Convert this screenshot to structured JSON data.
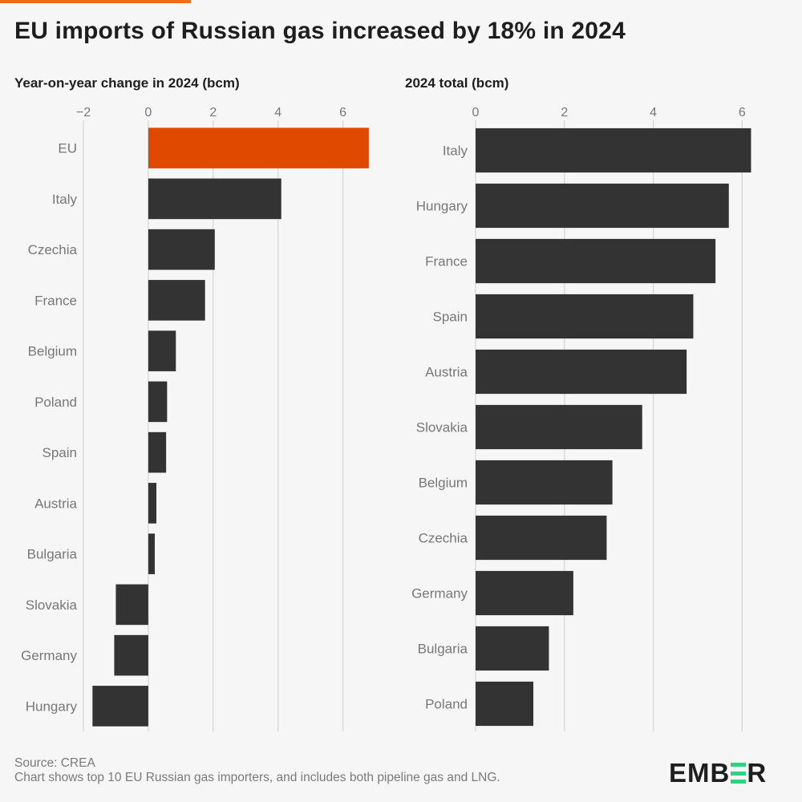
{
  "title": "EU imports of Russian gas increased by 18% in 2024",
  "colors": {
    "accent_bar": "#f26a1b",
    "highlight": "#e04a00",
    "bar": "#333333",
    "grid": "#d4d4d4",
    "label": "#777777",
    "logo_green": "#2bd47d"
  },
  "chart_data": [
    {
      "type": "bar",
      "orientation": "horizontal",
      "title": "Year-on-year change in 2024 (bcm)",
      "categories": [
        "EU",
        "Italy",
        "Czechia",
        "France",
        "Belgium",
        "Poland",
        "Spain",
        "Austria",
        "Bulgaria",
        "Slovakia",
        "Germany",
        "Hungary"
      ],
      "values": [
        6.8,
        4.1,
        2.05,
        1.75,
        0.85,
        0.58,
        0.55,
        0.25,
        0.2,
        -1.0,
        -1.05,
        -1.72
      ],
      "highlight": [
        "EU"
      ],
      "xlim": [
        -2,
        7
      ],
      "xticks": [
        -2,
        0,
        2,
        4,
        6
      ],
      "xtick_labels": [
        "−2",
        "0",
        "2",
        "4",
        "6"
      ],
      "grid": true
    },
    {
      "type": "bar",
      "orientation": "horizontal",
      "title": "2024 total (bcm)",
      "categories": [
        "Italy",
        "Hungary",
        "France",
        "Spain",
        "Austria",
        "Slovakia",
        "Belgium",
        "Czechia",
        "Germany",
        "Bulgaria",
        "Poland"
      ],
      "values": [
        6.2,
        5.7,
        5.4,
        4.9,
        4.75,
        3.75,
        3.08,
        2.95,
        2.2,
        1.65,
        1.3
      ],
      "xlim": [
        0,
        6.3
      ],
      "xticks": [
        0,
        2,
        4,
        6
      ],
      "xtick_labels": [
        "0",
        "2",
        "4",
        "6"
      ],
      "grid": true
    }
  ],
  "footer": {
    "source": "Source: CREA",
    "note": "Chart shows top 10 EU Russian gas importers, and includes both pipeline gas and LNG."
  },
  "logo": {
    "before": "EMB",
    "after": "R"
  }
}
